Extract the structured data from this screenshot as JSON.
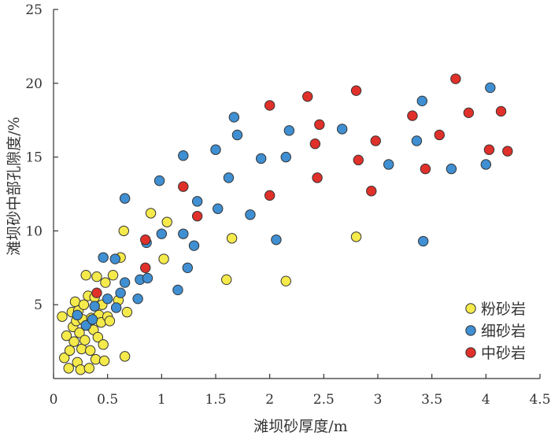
{
  "chart_data": {
    "type": "scatter",
    "title": "",
    "xlabel": "滩坝砂厚度/m",
    "ylabel": "滩坝砂中部孔隙度/%",
    "xlim": [
      0,
      4.5
    ],
    "ylim": [
      0,
      25
    ],
    "x_ticks": [
      "0",
      "0.5",
      "1",
      "1.5",
      "2",
      "2.5",
      "3",
      "3.5",
      "4",
      "4.5"
    ],
    "y_ticks": [
      "5",
      "10",
      "15",
      "20",
      "25"
    ],
    "grid": false,
    "legend_position": "bottom-right",
    "series": [
      {
        "name": "粉砂岩",
        "color": "#f5ea4b",
        "points": [
          [
            0.08,
            4.2
          ],
          [
            0.1,
            1.4
          ],
          [
            0.12,
            2.9
          ],
          [
            0.14,
            0.7
          ],
          [
            0.15,
            1.9
          ],
          [
            0.17,
            4.5
          ],
          [
            0.18,
            3.5
          ],
          [
            0.19,
            2.5
          ],
          [
            0.2,
            5.2
          ],
          [
            0.21,
            3.9
          ],
          [
            0.22,
            1.1
          ],
          [
            0.23,
            4.6
          ],
          [
            0.24,
            3.1
          ],
          [
            0.25,
            0.6
          ],
          [
            0.26,
            2.0
          ],
          [
            0.27,
            4.0
          ],
          [
            0.28,
            5.0
          ],
          [
            0.29,
            2.6
          ],
          [
            0.3,
            7.0
          ],
          [
            0.31,
            3.6
          ],
          [
            0.32,
            5.6
          ],
          [
            0.33,
            0.7
          ],
          [
            0.34,
            1.9
          ],
          [
            0.35,
            4.1
          ],
          [
            0.37,
            3.3
          ],
          [
            0.38,
            5.5
          ],
          [
            0.39,
            1.3
          ],
          [
            0.4,
            6.9
          ],
          [
            0.41,
            2.8
          ],
          [
            0.42,
            4.3
          ],
          [
            0.44,
            3.8
          ],
          [
            0.45,
            5.0
          ],
          [
            0.46,
            2.3
          ],
          [
            0.47,
            1.2
          ],
          [
            0.48,
            6.5
          ],
          [
            0.5,
            4.2
          ],
          [
            0.52,
            3.9
          ],
          [
            0.55,
            7.0
          ],
          [
            0.6,
            5.3
          ],
          [
            0.62,
            8.2
          ],
          [
            0.65,
            10.0
          ],
          [
            0.68,
            4.5
          ],
          [
            0.66,
            1.5
          ],
          [
            0.9,
            11.2
          ],
          [
            1.02,
            8.1
          ],
          [
            1.05,
            10.6
          ],
          [
            1.6,
            6.7
          ],
          [
            1.65,
            9.5
          ],
          [
            2.15,
            6.6
          ],
          [
            2.8,
            9.6
          ]
        ]
      },
      {
        "name": "细砂岩",
        "color": "#3f8fd2",
        "points": [
          [
            0.22,
            4.3
          ],
          [
            0.3,
            3.6
          ],
          [
            0.36,
            4.0
          ],
          [
            0.38,
            4.9
          ],
          [
            0.46,
            8.2
          ],
          [
            0.5,
            5.4
          ],
          [
            0.57,
            8.1
          ],
          [
            0.58,
            4.8
          ],
          [
            0.62,
            5.8
          ],
          [
            0.66,
            6.5
          ],
          [
            0.66,
            12.2
          ],
          [
            0.78,
            5.4
          ],
          [
            0.8,
            6.7
          ],
          [
            0.86,
            9.2
          ],
          [
            0.87,
            6.8
          ],
          [
            0.98,
            13.4
          ],
          [
            1.0,
            9.8
          ],
          [
            1.15,
            6.0
          ],
          [
            1.2,
            15.1
          ],
          [
            1.2,
            9.8
          ],
          [
            1.24,
            7.5
          ],
          [
            1.3,
            9.0
          ],
          [
            1.33,
            12.0
          ],
          [
            1.5,
            15.5
          ],
          [
            1.52,
            11.5
          ],
          [
            1.62,
            13.6
          ],
          [
            1.67,
            17.7
          ],
          [
            1.7,
            16.5
          ],
          [
            1.82,
            11.1
          ],
          [
            1.92,
            14.9
          ],
          [
            2.06,
            9.4
          ],
          [
            2.15,
            15.0
          ],
          [
            2.18,
            16.8
          ],
          [
            2.67,
            16.9
          ],
          [
            3.1,
            14.5
          ],
          [
            3.36,
            16.1
          ],
          [
            3.41,
            18.8
          ],
          [
            3.42,
            9.3
          ],
          [
            3.68,
            14.2
          ],
          [
            4.0,
            14.5
          ],
          [
            4.04,
            19.7
          ]
        ]
      },
      {
        "name": "中砂岩",
        "color": "#e0302a",
        "points": [
          [
            0.4,
            5.8
          ],
          [
            0.85,
            9.4
          ],
          [
            0.85,
            7.5
          ],
          [
            1.2,
            13.0
          ],
          [
            1.33,
            11.0
          ],
          [
            2.0,
            18.5
          ],
          [
            2.0,
            12.4
          ],
          [
            2.35,
            19.1
          ],
          [
            2.42,
            15.9
          ],
          [
            2.44,
            13.6
          ],
          [
            2.46,
            17.2
          ],
          [
            2.8,
            19.5
          ],
          [
            2.82,
            14.8
          ],
          [
            2.94,
            12.7
          ],
          [
            2.98,
            16.1
          ],
          [
            3.32,
            17.8
          ],
          [
            3.44,
            14.2
          ],
          [
            3.57,
            16.5
          ],
          [
            3.72,
            20.3
          ],
          [
            3.84,
            18.0
          ],
          [
            4.03,
            15.5
          ],
          [
            4.14,
            18.1
          ],
          [
            4.2,
            15.4
          ]
        ]
      }
    ]
  }
}
